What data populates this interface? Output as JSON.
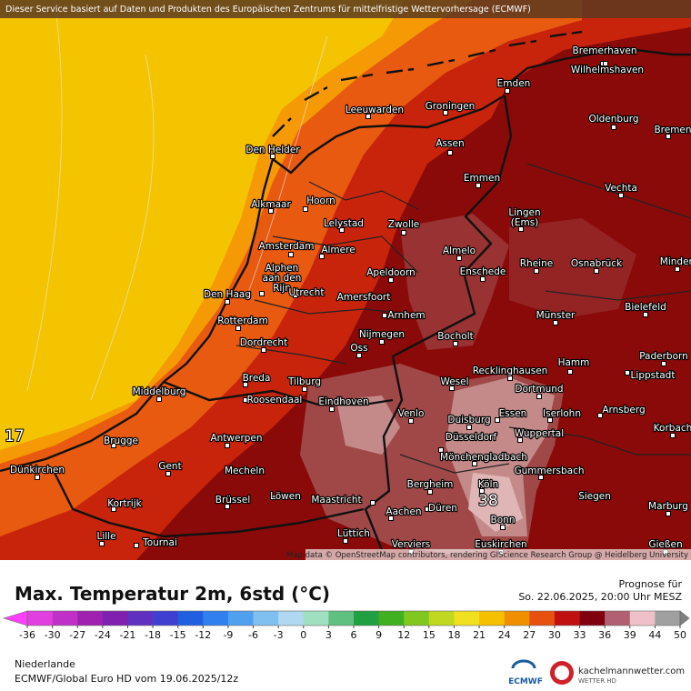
{
  "header": {
    "banner": "Dieser Service basiert auf Daten und Produkten des Europäischen Zentrums für mittelfristige Wettervorhersage (ECMWF)"
  },
  "map": {
    "cities": [
      [
        "Bremerhaven"
      ],
      [
        "Wilhelmshaven"
      ],
      [
        "Emden"
      ],
      [
        "Leeuwarden"
      ],
      [
        "Groningen"
      ],
      [
        "Oldenburg"
      ],
      [
        "Bremen"
      ],
      [
        "Den Helder"
      ],
      [
        "Assen"
      ],
      [
        "Emmen"
      ],
      [
        "Vechta"
      ],
      [
        "Alkmaar"
      ],
      [
        "Hoorn"
      ],
      [
        "Lingen",
        "(Ems)"
      ],
      [
        "Lelystad"
      ],
      [
        "Zwolle"
      ],
      [
        "Amsterdam"
      ],
      [
        "Almere"
      ],
      [
        "Almelo"
      ],
      [
        "Rheine"
      ],
      [
        "Osnabrück"
      ],
      [
        "Minden"
      ],
      [
        "Alphen",
        "aan den",
        "Rijn"
      ],
      [
        "Apeldoorn"
      ],
      [
        "Enschede"
      ],
      [
        "Utrecht"
      ],
      [
        "Amersfoort"
      ],
      [
        "Den Haag"
      ],
      [
        "Bielefeld"
      ],
      [
        "Rotterdam"
      ],
      [
        "Arnhem"
      ],
      [
        "Münster"
      ],
      [
        "Nijmegen"
      ],
      [
        "Dordrecht"
      ],
      [
        "Bocholt"
      ],
      [
        "Oss"
      ],
      [
        "Paderborn"
      ],
      [
        "Hamm"
      ],
      [
        "Breda"
      ],
      [
        "Tilburg"
      ],
      [
        "Wesel"
      ],
      [
        "Recklinghausen"
      ],
      [
        "Lippstadt"
      ],
      [
        "Middelburg"
      ],
      [
        "Roosendaal"
      ],
      [
        "Eindhoven"
      ],
      [
        "Dortmund"
      ],
      [
        "Arnsberg"
      ],
      [
        "Venlo"
      ],
      [
        "Duisburg"
      ],
      [
        "Essen"
      ],
      [
        "Iserlohn"
      ],
      [
        "Korbach"
      ],
      [
        "Brugge"
      ],
      [
        "Antwerpen"
      ],
      [
        "Wuppertal"
      ],
      [
        "Düsseldorf"
      ],
      [
        "Mönchengladbach"
      ],
      [
        "Gent"
      ],
      [
        "Dünkirchen"
      ],
      [
        "Mecheln"
      ],
      [
        "Gummersbach"
      ],
      [
        "Bergheim"
      ],
      [
        "Köln"
      ],
      [
        "Kortrijk"
      ],
      [
        "Brüssel"
      ],
      [
        "Löwen"
      ],
      [
        "Maastricht"
      ],
      [
        "Siegen"
      ],
      [
        "Düren"
      ],
      [
        "Marburg"
      ],
      [
        "Aachen"
      ],
      [
        "Bonn"
      ],
      [
        "Lille"
      ],
      [
        "Tournai"
      ],
      [
        "Lüttich"
      ],
      [
        "Verviers"
      ],
      [
        "Euskirchen"
      ],
      [
        "Gießen"
      ]
    ],
    "temperature_labels": [
      17,
      38
    ],
    "attribution": "Map data © OpenStreetMap contributors, rendering GIScience Research Group @ Heidelberg University"
  },
  "legend": {
    "title": "Max. Temperatur 2m, 6std (°C)",
    "forecast_label": "Prognose für",
    "forecast_time": "So. 22.06.2025, 20:00 Uhr MESZ",
    "colorbar": {
      "ticks": [
        -36,
        -30,
        -27,
        -24,
        -21,
        -18,
        -15,
        -12,
        -9,
        -6,
        -3,
        0,
        3,
        6,
        9,
        12,
        15,
        18,
        21,
        24,
        27,
        30,
        33,
        36,
        39,
        44,
        50
      ],
      "colors": [
        "#e040e0",
        "#c030c8",
        "#a020b0",
        "#8020b0",
        "#6030c0",
        "#4040d0",
        "#2060e0",
        "#3080f0",
        "#50a0f0",
        "#80c0f0",
        "#b0d8f0",
        "#a0e0c0",
        "#60c080",
        "#20a040",
        "#40b020",
        "#80c820",
        "#c0d820",
        "#f0e020",
        "#f5c000",
        "#f09000",
        "#e85010",
        "#c01010",
        "#800010",
        "#b06070",
        "#f0c0c8",
        "#a0a0a0"
      ],
      "under_color": "#ff40ff",
      "over_color": "#808080"
    }
  },
  "footer": {
    "region": "Niederlande",
    "model": "ECMWF/Global Euro HD vom  19.06.2025/12z",
    "ecmwf_logo": "ECMWF",
    "site": "kachelmannwetter.com",
    "site_sub": "WETTER HD"
  }
}
